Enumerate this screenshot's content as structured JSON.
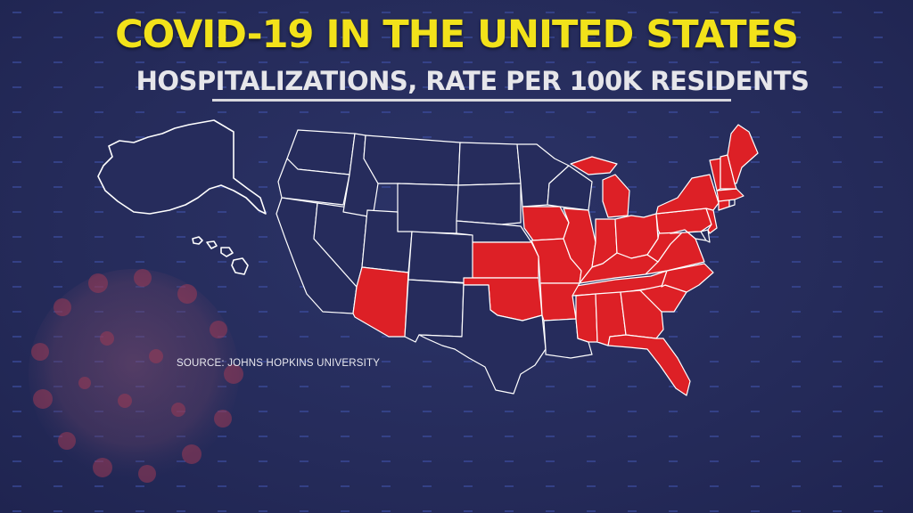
{
  "title": "COVID-19 IN THE UNITED STATES",
  "subtitle": "HOSPITALIZATIONS, RATE PER 100K RESIDENTS",
  "source": "SOURCE: JOHNS HOPKINS UNIVERSITY",
  "colors": {
    "background": "#262c5c",
    "highlight": "#dd2026",
    "state_fill": "#262c5c",
    "state_stroke": "#ffffff",
    "title": "#f2e21a"
  },
  "highlighted_states": [
    "Arizona",
    "Kansas",
    "Oklahoma",
    "Iowa",
    "Missouri",
    "Arkansas",
    "Illinois",
    "Indiana",
    "Michigan",
    "Ohio",
    "Kentucky",
    "Tennessee",
    "Mississippi",
    "Alabama",
    "Georgia",
    "Florida",
    "South Carolina",
    "North Carolina",
    "Virginia",
    "West Virginia",
    "Pennsylvania",
    "New York",
    "New Jersey",
    "Connecticut",
    "Massachusetts",
    "Vermont",
    "New Hampshire",
    "Maine"
  ]
}
